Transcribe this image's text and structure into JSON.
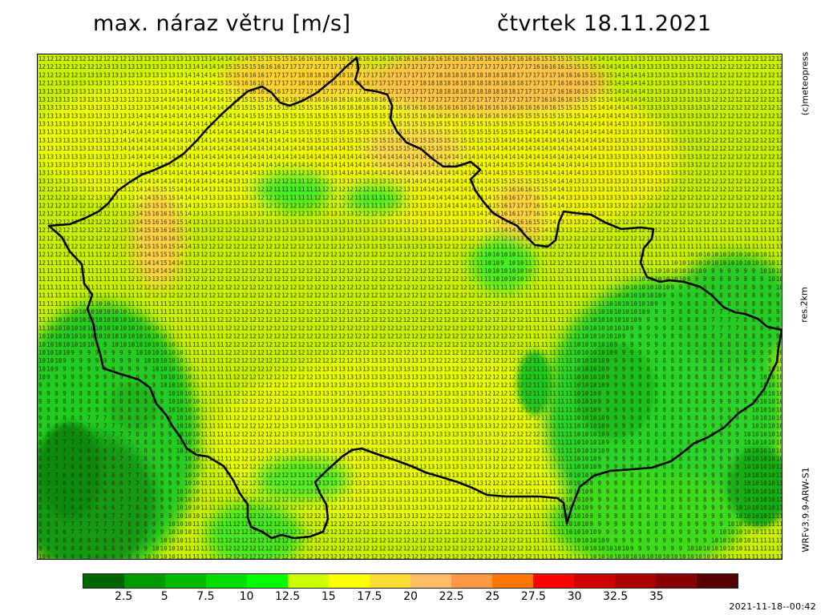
{
  "header": {
    "title": "max. náraz větru [m/s]",
    "date": "čtvrtek 18.11.2021"
  },
  "side_labels": {
    "credit": "(c)meteopress",
    "resolution": "res.2km",
    "model": "WRFv3.9.9-ARW-S1"
  },
  "legend": {
    "colors": [
      "#006600",
      "#009900",
      "#00bb00",
      "#00dd00",
      "#00ff00",
      "#ccff00",
      "#ffff00",
      "#ffdd33",
      "#ffbb66",
      "#ff9944",
      "#ff7700",
      "#ff0000",
      "#cc0000",
      "#aa0000",
      "#880000",
      "#550000"
    ],
    "ticks": [
      "2.5",
      "5",
      "7.5",
      "10",
      "12.5",
      "15",
      "17.5",
      "20",
      "22.5",
      "25",
      "27.5",
      "30",
      "32.5",
      "35"
    ]
  },
  "timestamp": "2021-11-18--00:42"
}
